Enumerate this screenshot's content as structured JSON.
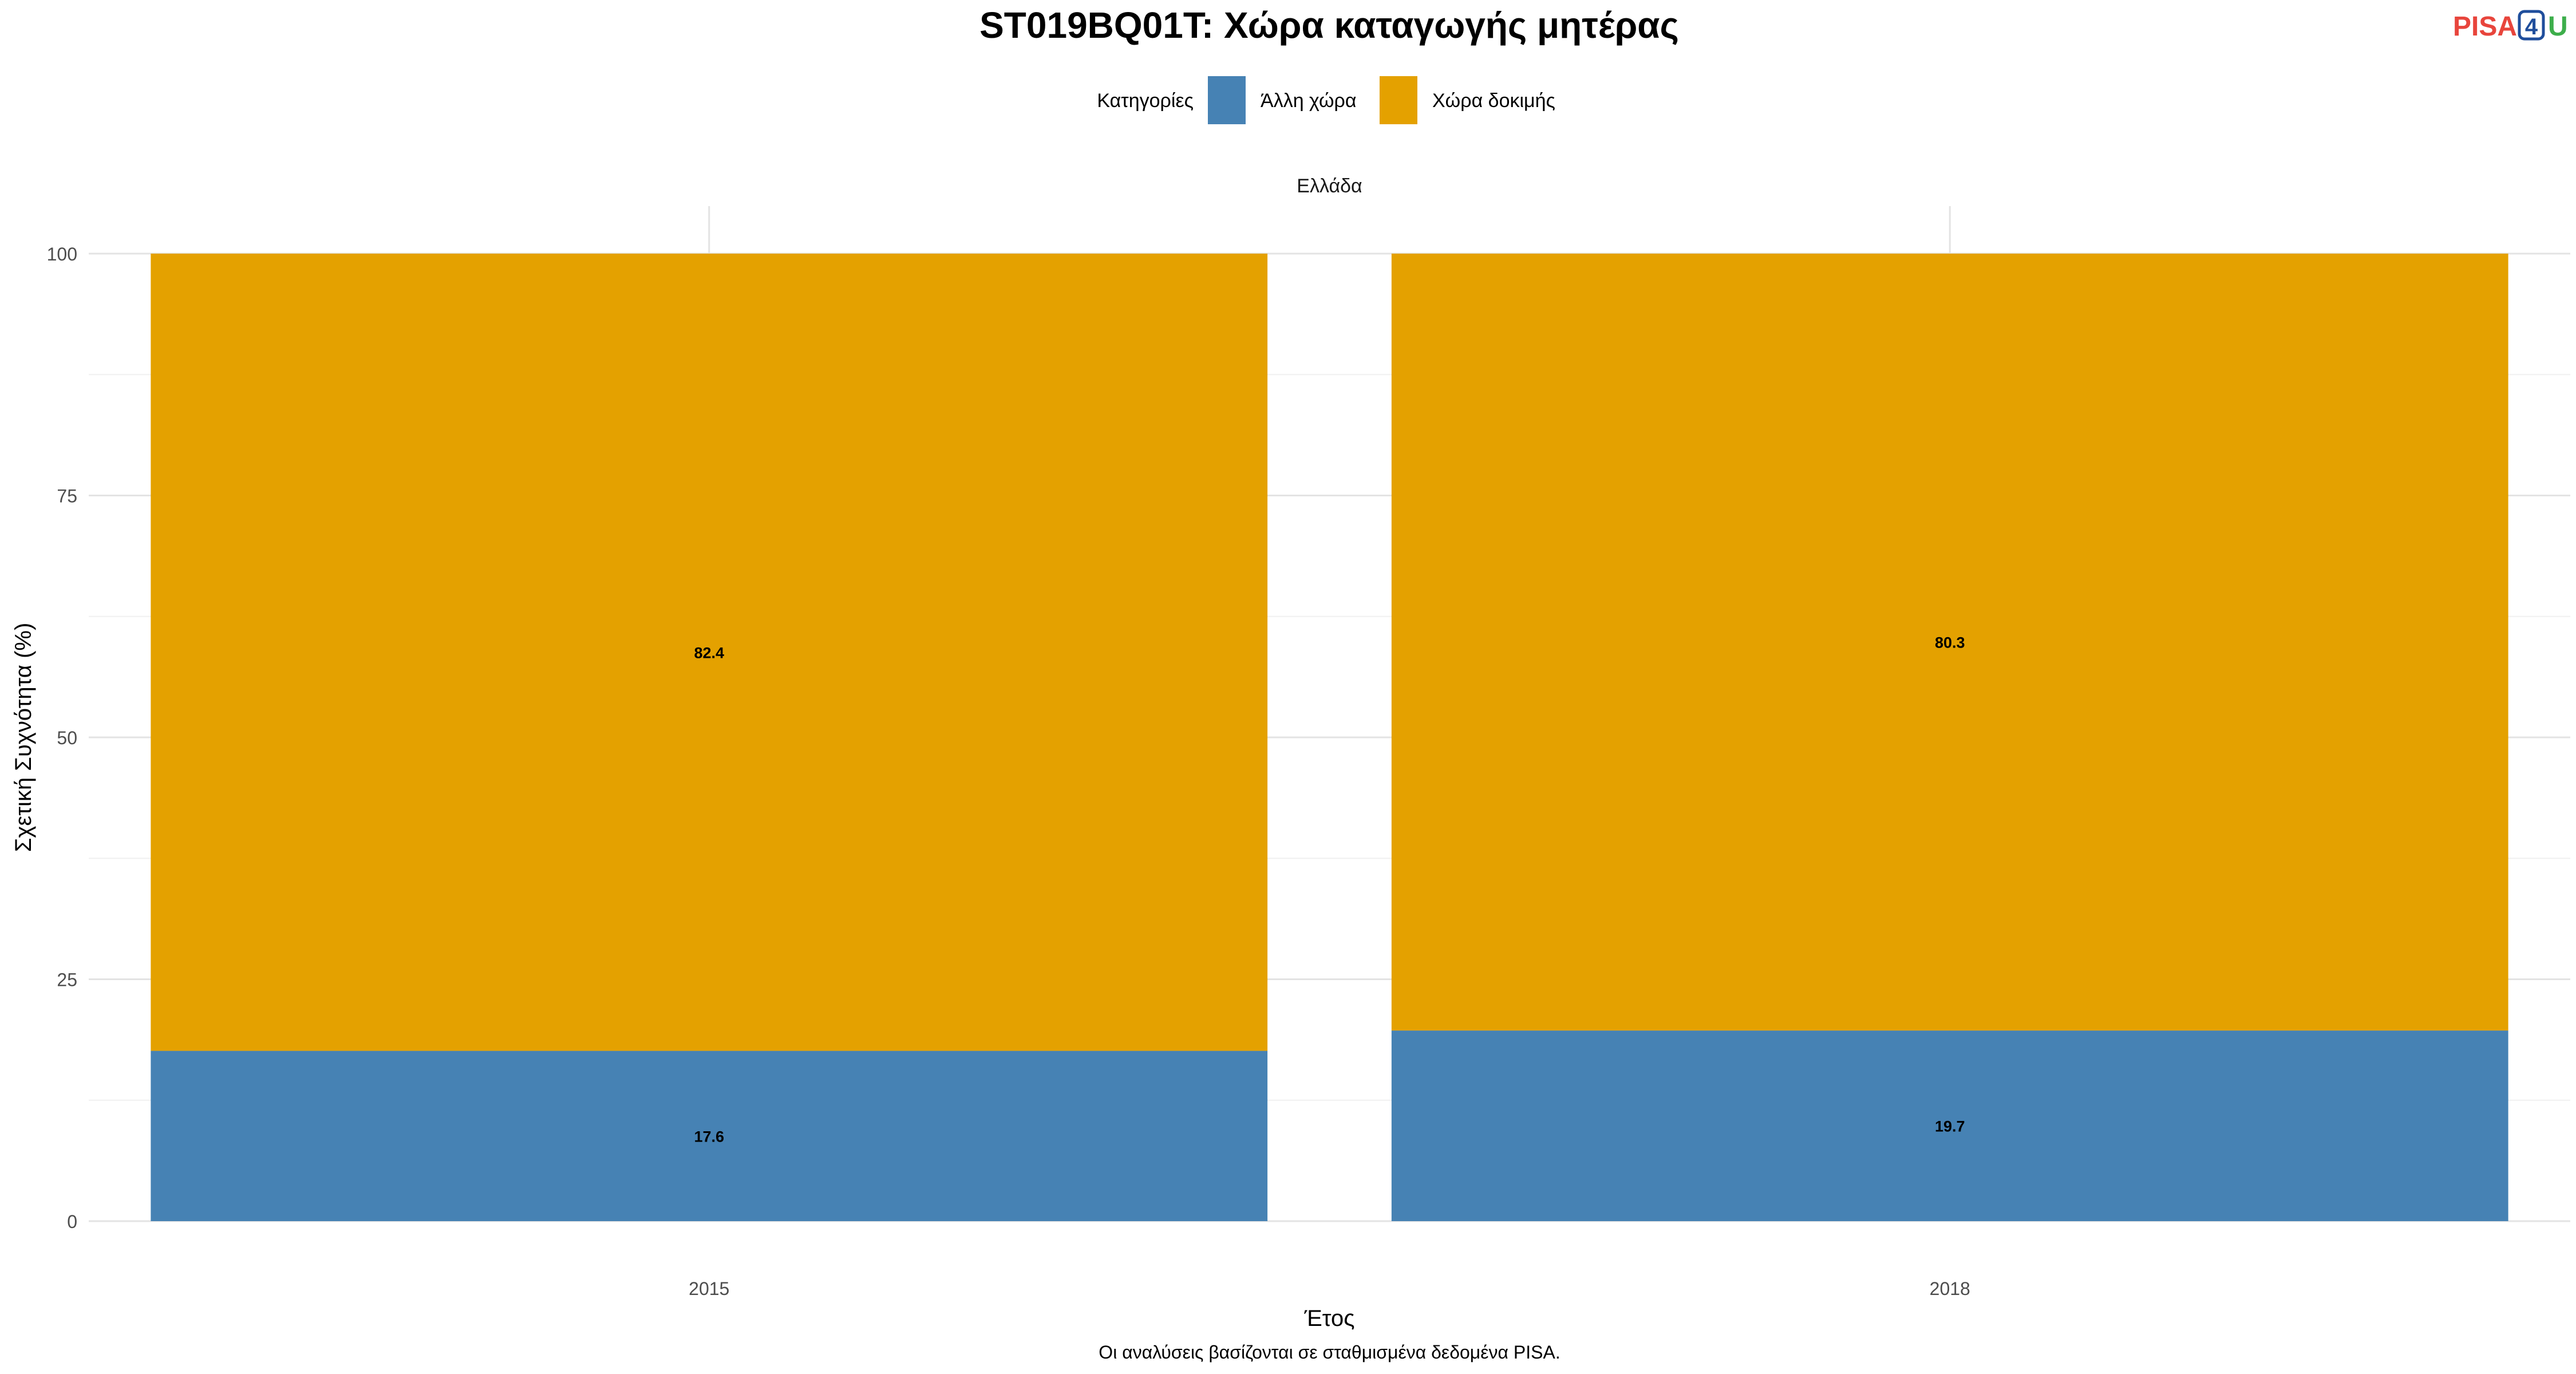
{
  "logo": {
    "part1": "PISA",
    "part2": "4",
    "part3": "U"
  },
  "chart_data": {
    "type": "bar",
    "stacked": true,
    "title": "ST019BQ01T: Χώρα καταγωγής μητέρας",
    "legend": {
      "title": "Κατηγορίες",
      "position": "top"
    },
    "facet": "Ελλάδα",
    "xlabel": "Έτος",
    "ylabel": "Σχετική Συχνότητα (%)",
    "ylim": [
      0,
      100
    ],
    "yticks": [
      0,
      25,
      50,
      75,
      100
    ],
    "grid": true,
    "categories": [
      "2015",
      "2018"
    ],
    "series": [
      {
        "name": "Άλλη χώρα",
        "color": "#4682B4",
        "values": [
          17.6,
          19.7
        ]
      },
      {
        "name": "Χώρα δοκιμής",
        "color": "#E4A100",
        "values": [
          82.4,
          80.3
        ]
      }
    ],
    "caption": "Οι αναλύσεις βασίζονται σε σταθμισμένα δεδομένα PISA."
  }
}
